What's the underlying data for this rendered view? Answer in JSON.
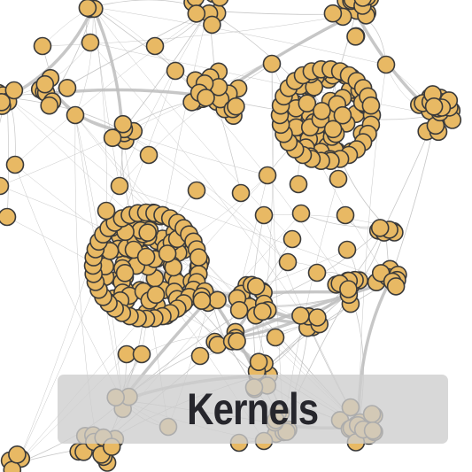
{
  "caption": {
    "label": "Kernels"
  },
  "colors": {
    "node_fill": "#e8b964",
    "node_stroke": "#3a3a3a",
    "edge": "#bdbdbd",
    "caption_bg": "#cdcdcd",
    "caption_text": "#26262c"
  },
  "icons": {
    "node": "circle-node-icon"
  }
}
